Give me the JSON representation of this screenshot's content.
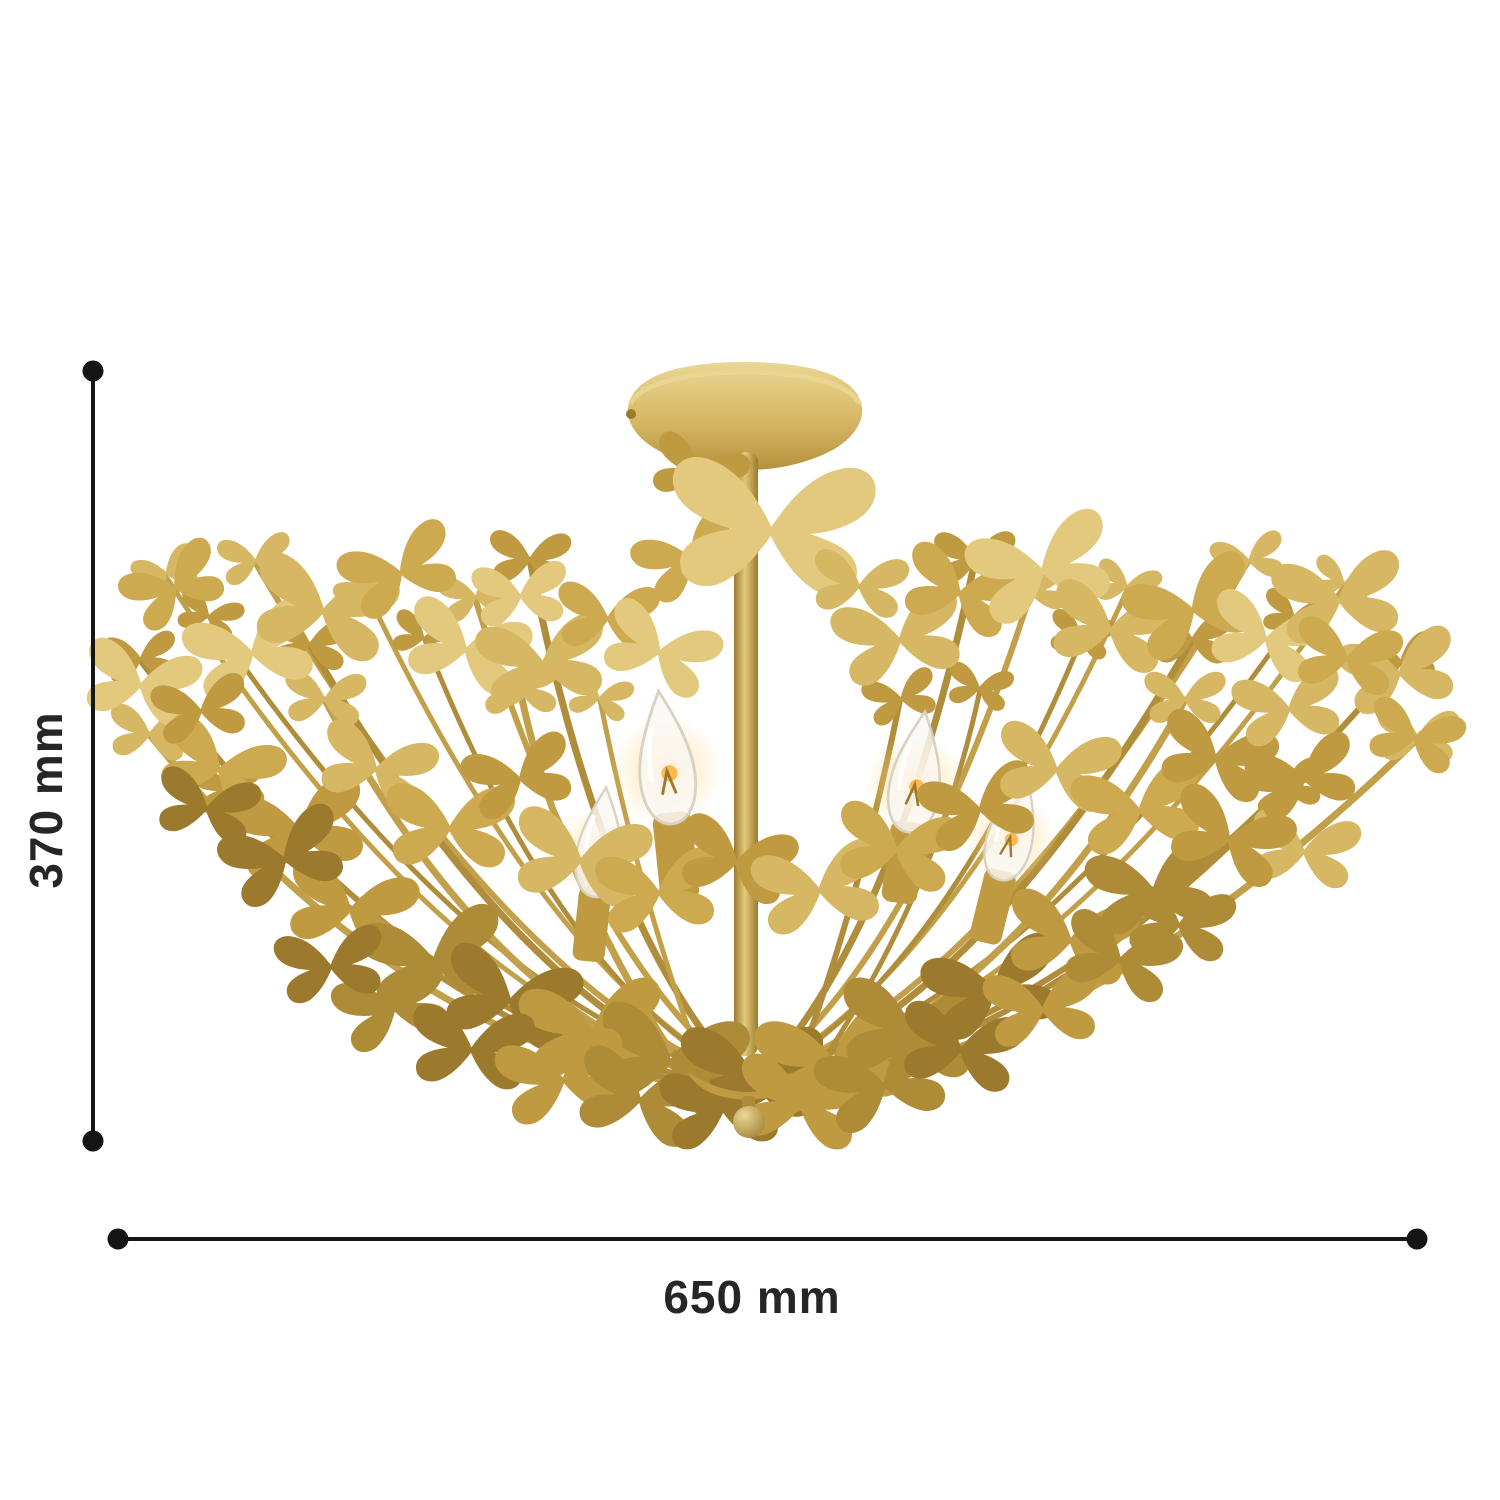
{
  "page": {
    "background_color": "#ffffff"
  },
  "product": {
    "name": "Gold butterfly semi-flush ceiling chandelier",
    "colors": {
      "gold_light": "#e2c97d",
      "gold_soft": "#d6b763",
      "gold": "#cdaa50",
      "gold_mid": "#c09a41",
      "gold_dark": "#ae8b36",
      "gold_deep": "#9c7a2d",
      "stem": "#c2a04a",
      "stem_dark": "#b08d3a",
      "canopy_hi": "#ead794",
      "canopy_lo": "#b6913d",
      "glow": "#ffd98e",
      "filament": "#ffb84d",
      "glass_edge": "#d8d2c4"
    }
  },
  "dimensions": {
    "height": {
      "label": "370 mm"
    },
    "width": {
      "label": "650 mm"
    },
    "line_color": "#151515",
    "label_color": "#262626"
  }
}
